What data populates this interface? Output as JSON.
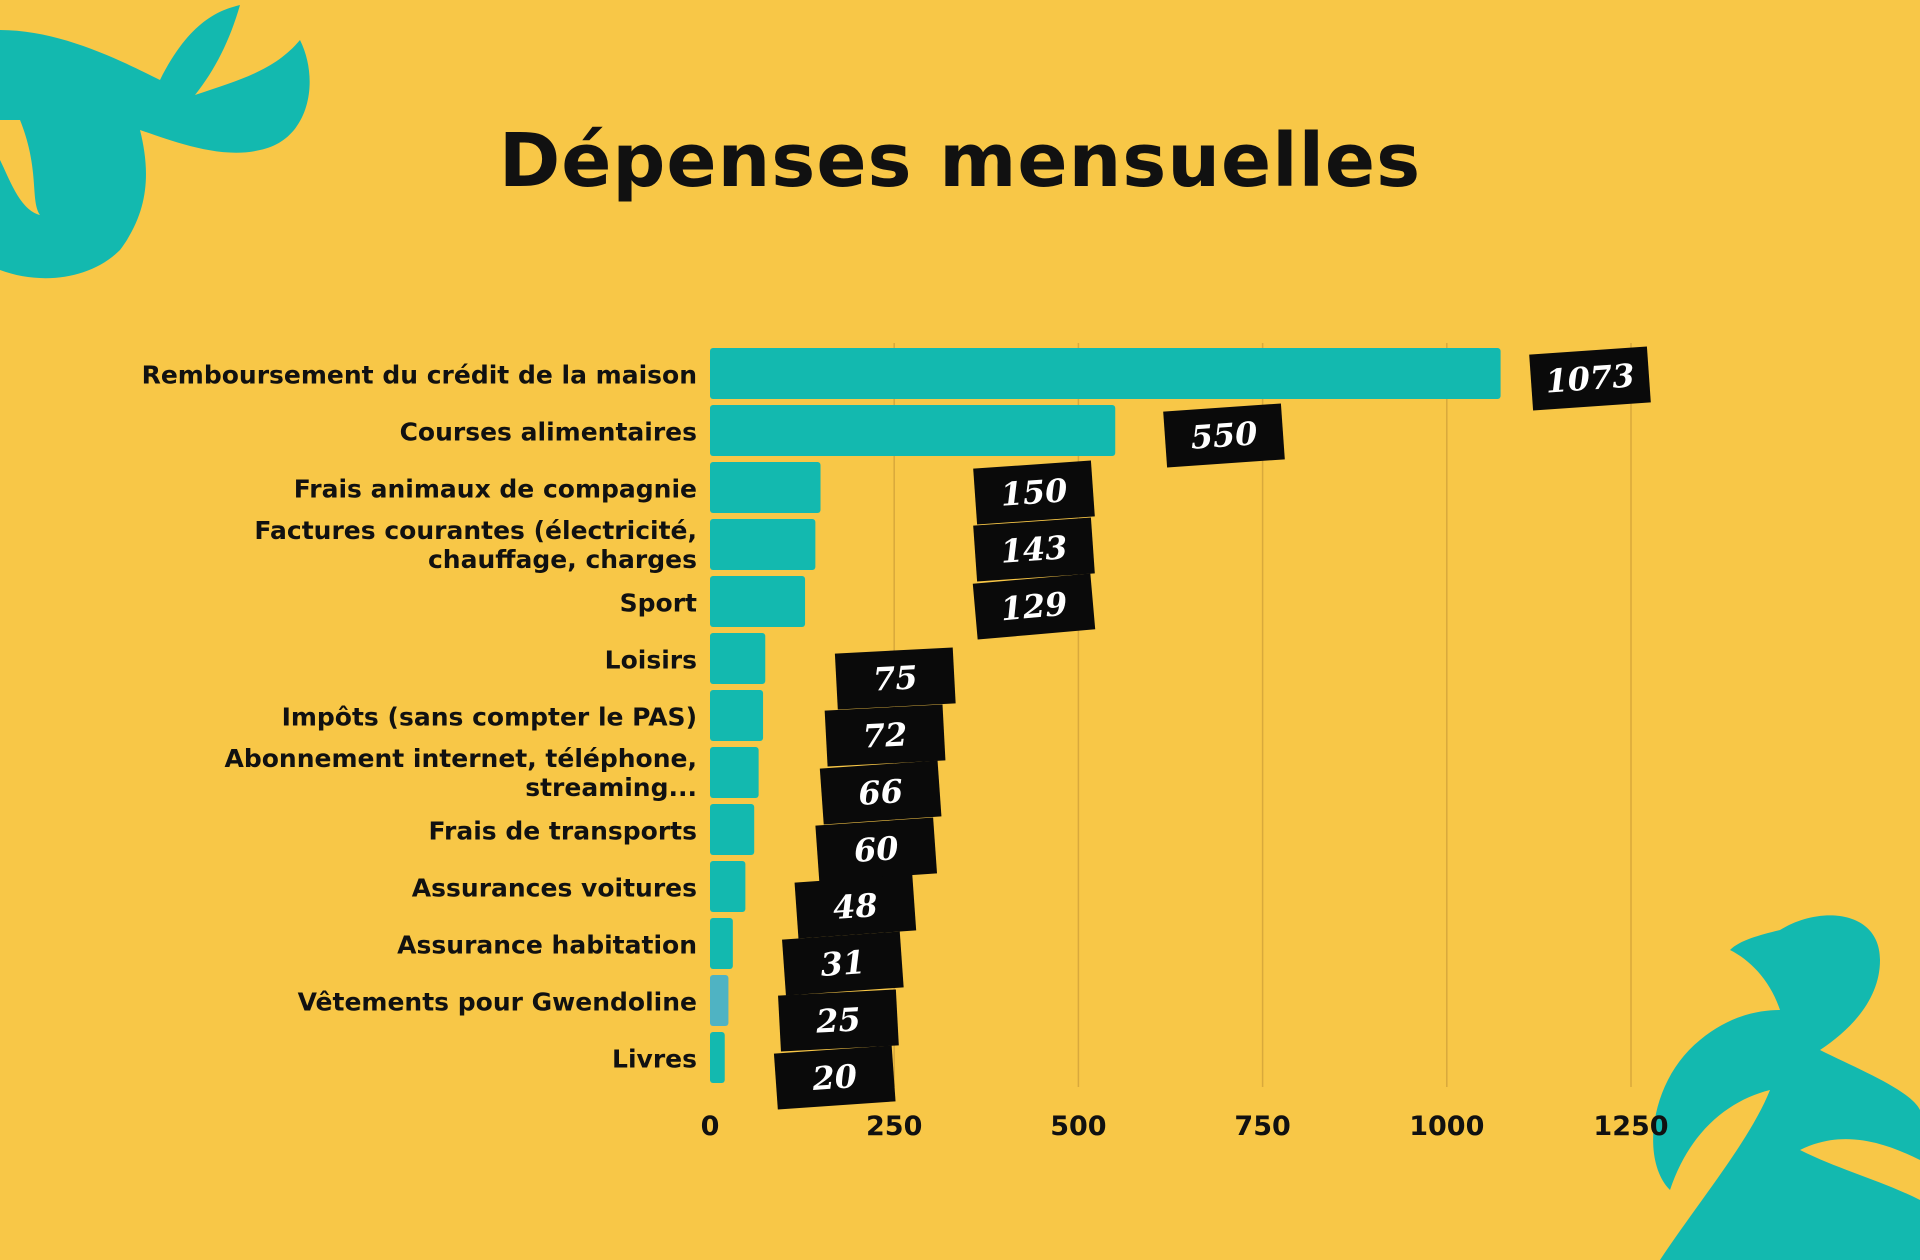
{
  "colors": {
    "background": "#F8C747",
    "bar": "#13B9AF",
    "bar_highlight": "#4FB3C3",
    "decoration": "#13B9AF",
    "label_box": "#0A0A0A",
    "grid": "#D9A93C"
  },
  "chart_data": {
    "type": "bar",
    "orientation": "horizontal",
    "title": "Dépenses mensuelles",
    "categories": [
      "Remboursement du crédit de la maison",
      "Courses alimentaires",
      "Frais animaux de compagnie",
      "Factures courantes (électricité, chauffage, charges",
      "Sport",
      "Loisirs",
      "Impôts (sans compter le PAS)",
      "Abonnement internet, téléphone, streaming...",
      "Frais de transports",
      "Assurances voitures",
      "Assurance habitation",
      "Vêtements pour Gwendoline",
      "Livres"
    ],
    "values": [
      1073,
      550,
      150,
      143,
      129,
      75,
      72,
      66,
      60,
      48,
      31,
      25,
      20
    ],
    "data_labels": [
      "1073",
      "550",
      "150",
      "143",
      "129",
      "75",
      "72",
      "66",
      "60",
      "48",
      "31",
      "25",
      "20"
    ],
    "xlim": [
      0,
      1250
    ],
    "xticks": [
      0,
      250,
      500,
      750,
      1000,
      1250
    ],
    "xtick_labels": [
      "0",
      "250",
      "500",
      "750",
      "1000",
      "1250"
    ],
    "grid": true,
    "xlabel": "",
    "ylabel": ""
  }
}
